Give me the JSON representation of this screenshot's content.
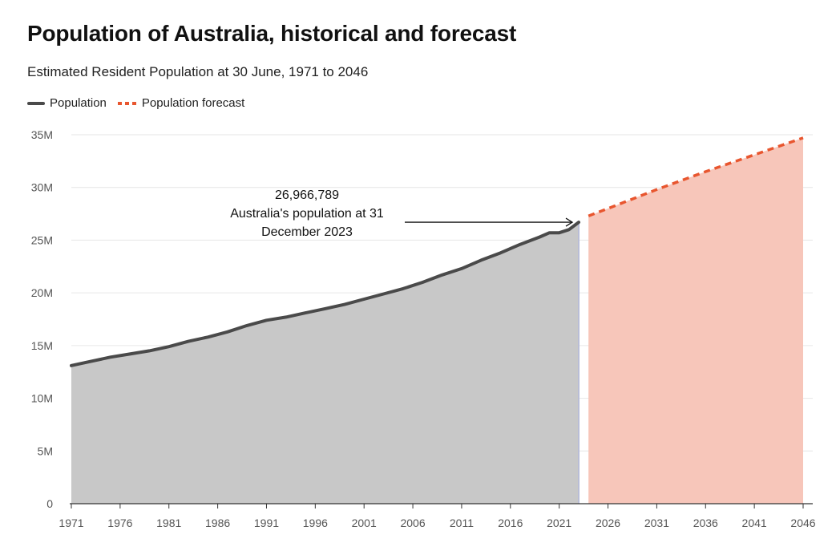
{
  "chart_data": {
    "type": "area",
    "title": "Population of Australia, historical and forecast",
    "subtitle": "Estimated Resident Population at 30 June, 1971 to 2046",
    "legend": {
      "placement": "top-left",
      "entries": [
        "Population",
        "Population forecast"
      ]
    },
    "colors": {
      "historical_line": "#4a4a4a",
      "historical_fill": "#c8c8c8",
      "forecast_line": "#e8562f",
      "forecast_fill": "#f7c6ba",
      "grid": "#e6e6e6"
    },
    "xlim": [
      1971,
      2046
    ],
    "ylim": [
      0,
      35000000
    ],
    "grid": true,
    "x_ticks": [
      "1971",
      "1976",
      "1981",
      "1986",
      "1991",
      "1996",
      "2001",
      "2006",
      "2011",
      "2016",
      "2021",
      "2026",
      "2031",
      "2036",
      "2041",
      "2046"
    ],
    "y_ticks": [
      "0",
      "5M",
      "10M",
      "15M",
      "20M",
      "25M",
      "30M",
      "35M"
    ],
    "series": [
      {
        "name": "Population",
        "style": "solid",
        "x": [
          1971,
          1973,
          1975,
          1977,
          1979,
          1981,
          1983,
          1985,
          1987,
          1989,
          1991,
          1993,
          1995,
          1997,
          1999,
          2001,
          2003,
          2005,
          2007,
          2009,
          2011,
          2013,
          2015,
          2017,
          2019,
          2020,
          2021,
          2022,
          2023
        ],
        "y": [
          13100000,
          13500000,
          13900000,
          14200000,
          14500000,
          14900000,
          15400000,
          15800000,
          16300000,
          16900000,
          17400000,
          17700000,
          18100000,
          18500000,
          18900000,
          19400000,
          19900000,
          20400000,
          21000000,
          21700000,
          22300000,
          23100000,
          23800000,
          24600000,
          25300000,
          25700000,
          25700000,
          26000000,
          26700000
        ]
      },
      {
        "name": "Population forecast",
        "style": "dashed",
        "x": [
          2024,
          2026,
          2031,
          2036,
          2041,
          2046
        ],
        "y": [
          27300000,
          28000000,
          29800000,
          31500000,
          33100000,
          34700000
        ]
      }
    ],
    "annotations": [
      {
        "value": "26,966,789",
        "text_line1": "Australia's population at 31",
        "text_line2": "December 2023",
        "target_x": 2023,
        "target_y": 26700000
      }
    ]
  }
}
